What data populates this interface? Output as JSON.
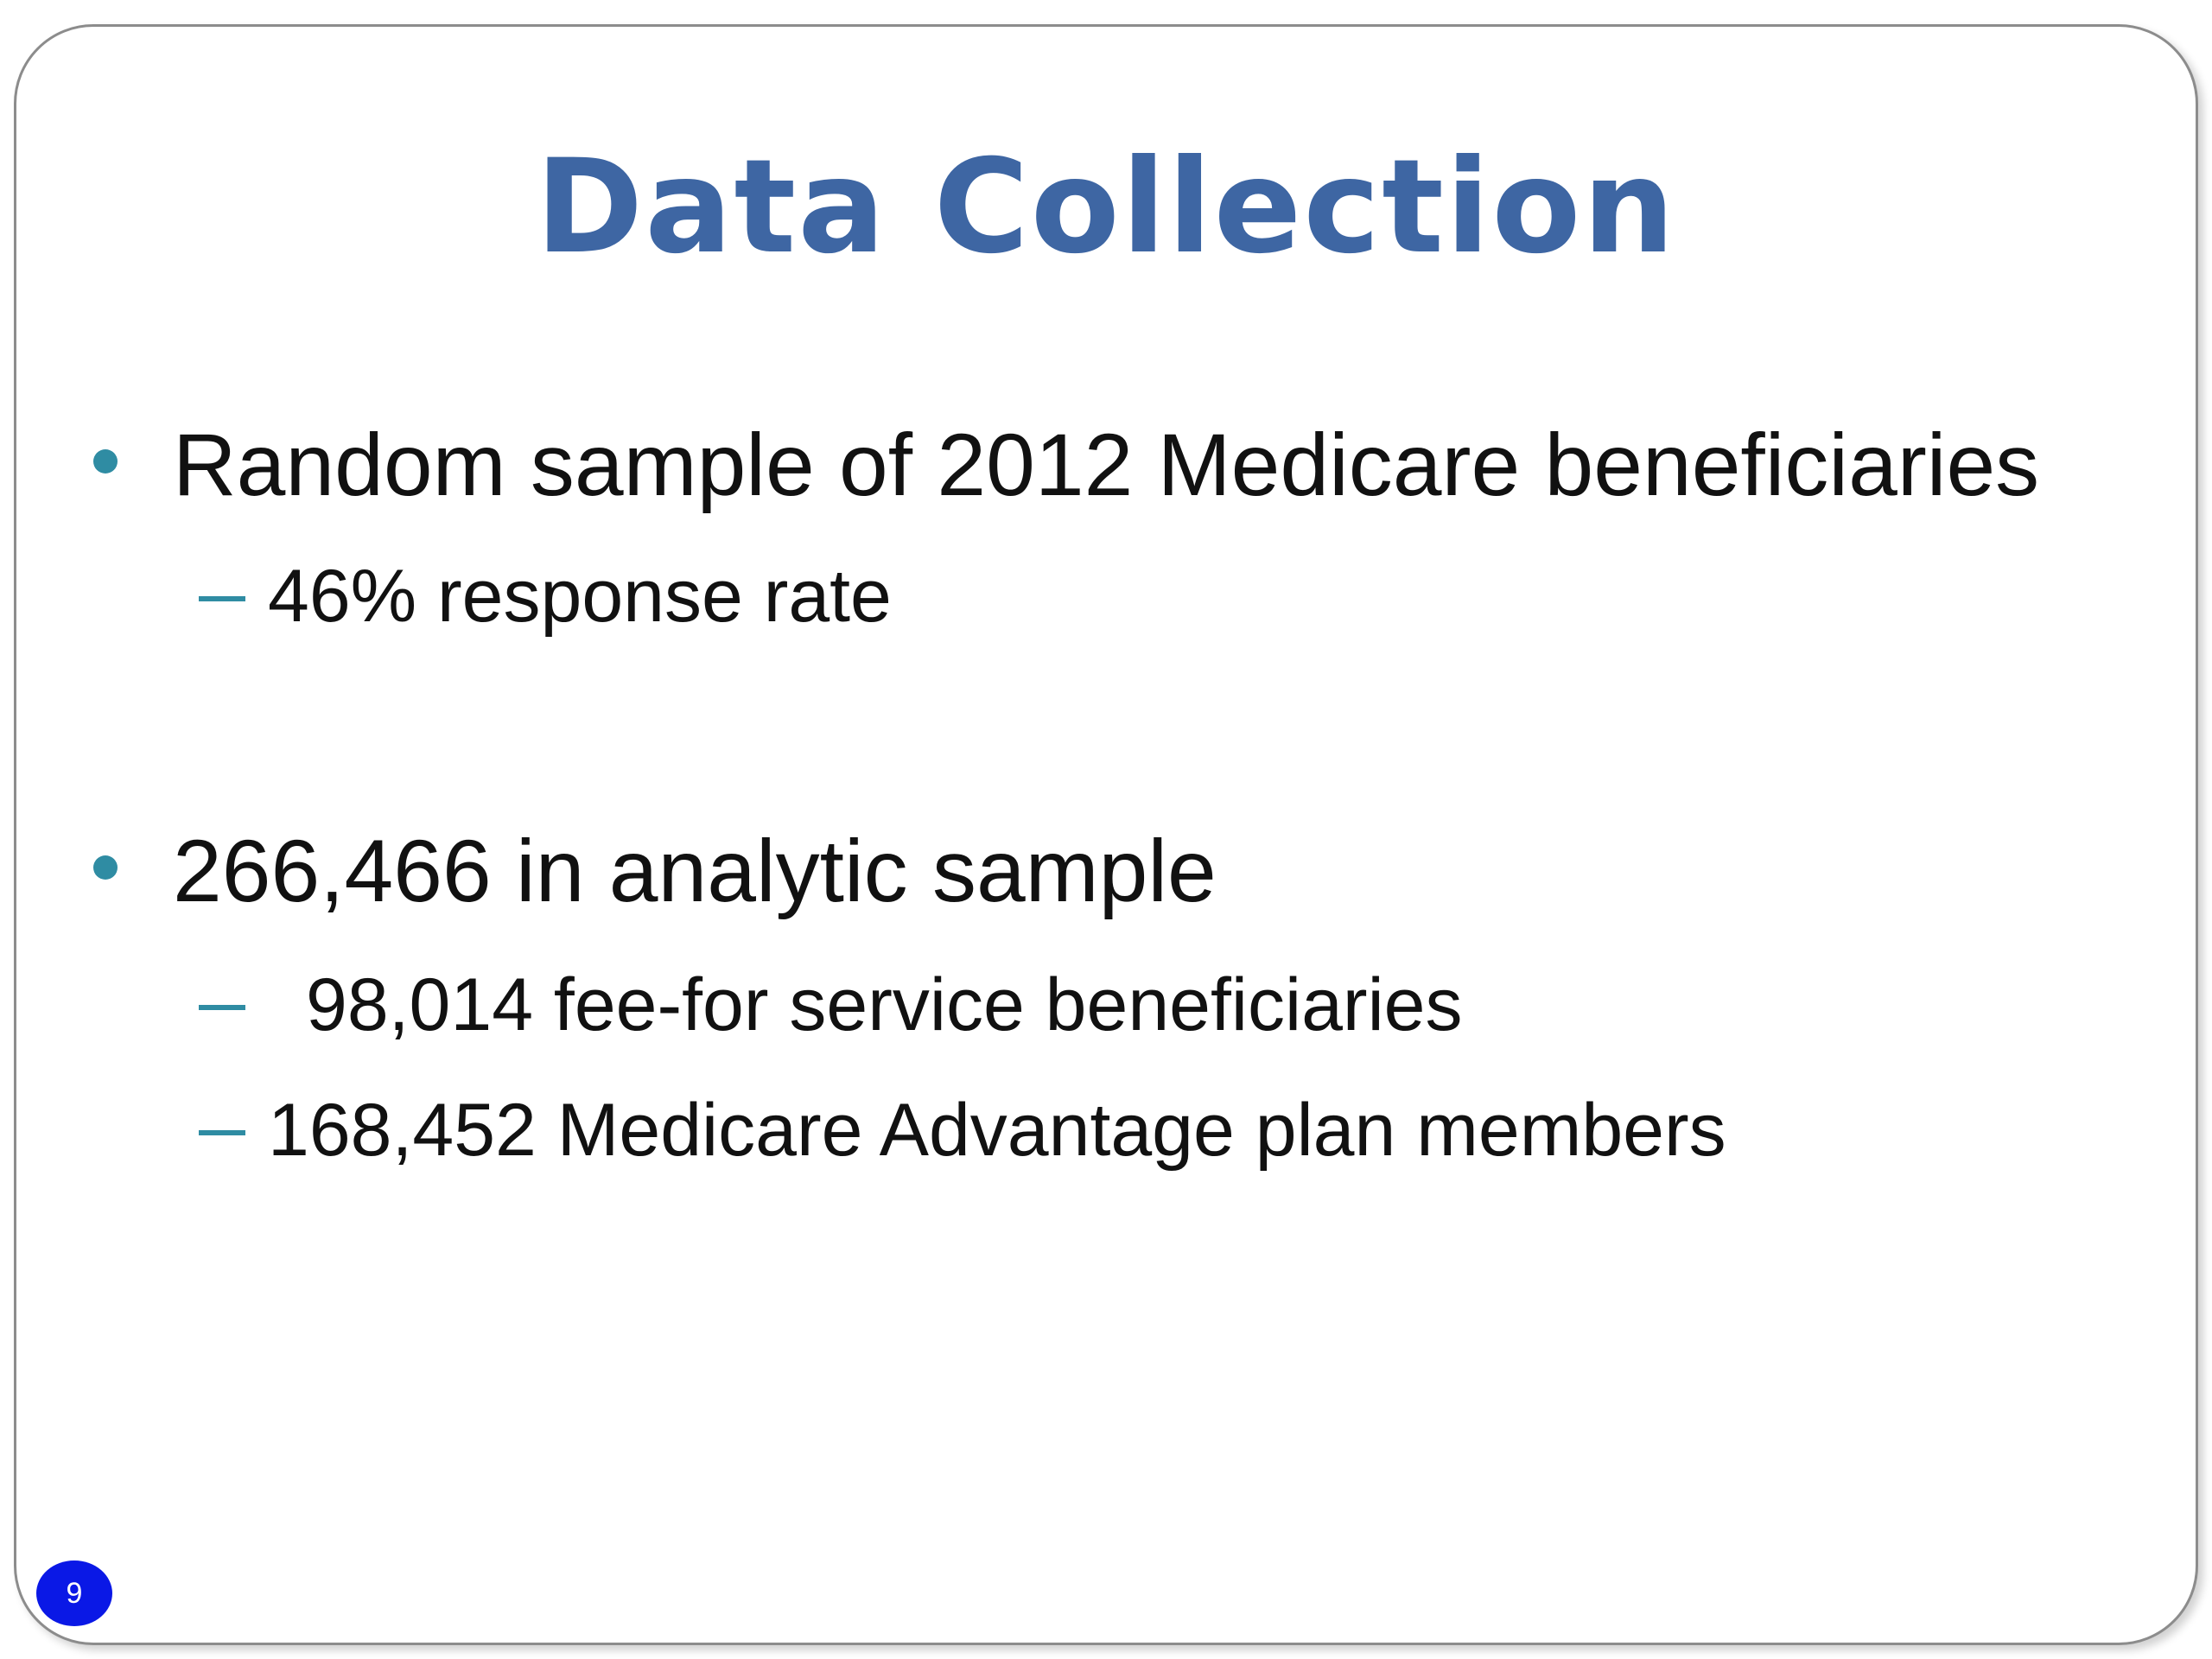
{
  "slide": {
    "title": "Data Collection",
    "bullets": [
      {
        "text": "Random sample of 2012 Medicare beneficiaries",
        "subitems": [
          "46% response rate"
        ]
      },
      {
        "text": "266,466 in analytic sample",
        "subitems": [
          "98,014 fee-for service beneficiaries",
          "168,452 Medicare Advantage plan members"
        ]
      }
    ],
    "page_number": "9"
  },
  "colors": {
    "title": "#3e66a3",
    "bullet_marker": "#2f8ca3",
    "page_badge": "#0a18e6"
  }
}
